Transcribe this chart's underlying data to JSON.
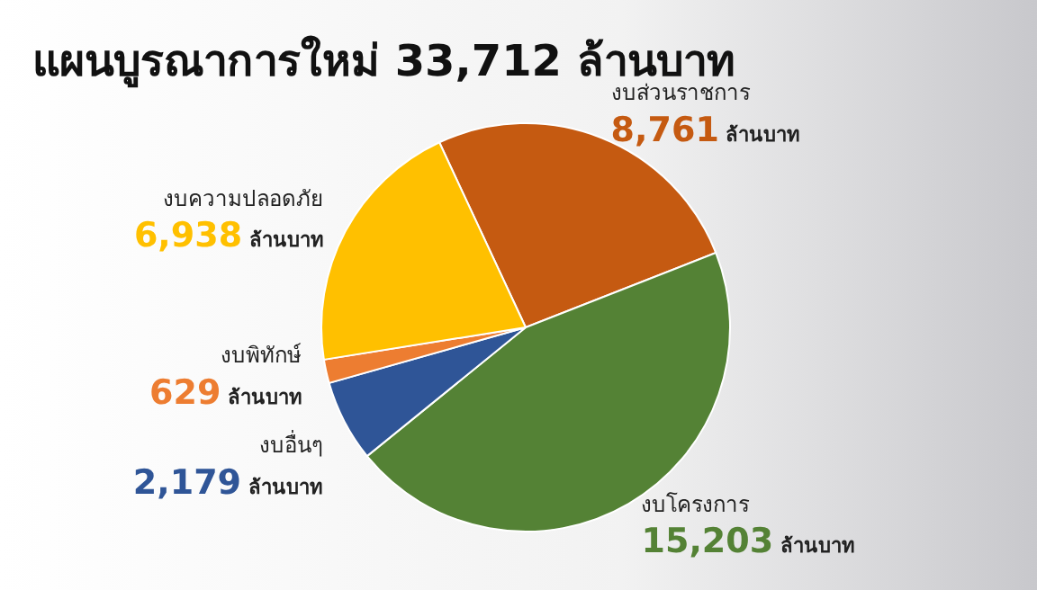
{
  "chart_data": {
    "type": "pie",
    "title": "แผนบูรณาการใหม่ 33,712 ล้านบาท",
    "categories": [
      "งบส่วนราชการ",
      "งบโครงการ",
      "งบอื่นๆ",
      "งบพิทักษ์",
      "งบความปลอดภัย"
    ],
    "values": [
      8761,
      15203,
      2179,
      629,
      6938
    ],
    "colors": [
      "#c55a11",
      "#548235",
      "#2f5597",
      "#ed7d31",
      "#ffc000"
    ],
    "value_labels": [
      "8,761 ล้านบาท",
      "15,203 ล้านบาท",
      "2,179 ล้านบาท",
      "629 ล้านบาท",
      "6,938 ล้านบาท"
    ],
    "legend": false
  }
}
